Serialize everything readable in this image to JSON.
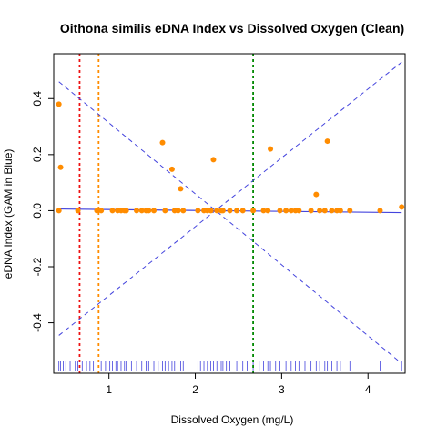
{
  "chart_data": {
    "type": "scatter",
    "title": "Oithona similis eDNA Index vs Dissolved Oxygen (Clean)",
    "xlabel": "Dissolved Oxygen (mg/L)",
    "ylabel": "eDNA Index (GAM in Blue)",
    "xlim": [
      0.36,
      4.43
    ],
    "ylim": [
      -0.58,
      0.56
    ],
    "x_ticks": [
      1,
      2,
      3,
      4
    ],
    "x_tick_labels": [
      "1",
      "2",
      "3",
      "4"
    ],
    "y_ticks": [
      -0.4,
      -0.2,
      0.0,
      0.2,
      0.4
    ],
    "y_tick_labels": [
      "-0.4",
      "-0.2",
      "0.0",
      "0.2",
      "0.4"
    ],
    "grid": false,
    "legend": "none",
    "points": {
      "color": "#ff8c00",
      "x": [
        0.42,
        0.44,
        0.42,
        0.64,
        0.86,
        0.91,
        1.04,
        1.1,
        1.14,
        1.18,
        1.2,
        1.32,
        1.38,
        1.43,
        1.46,
        1.52,
        1.62,
        1.65,
        1.73,
        1.76,
        1.8,
        1.83,
        1.86,
        2.03,
        2.1,
        2.14,
        2.18,
        2.21,
        2.25,
        2.3,
        2.32,
        2.4,
        2.48,
        2.55,
        2.67,
        2.79,
        2.84,
        2.87,
        2.98,
        3.05,
        3.11,
        3.16,
        3.2,
        3.34,
        3.4,
        3.44,
        3.5,
        3.53,
        3.58,
        3.64,
        3.68,
        3.79,
        4.14,
        4.39
      ],
      "y": [
        0.38,
        0.155,
        0.0,
        0.0,
        0.0,
        0.0,
        0.0,
        0.0,
        0.0,
        0.0,
        0.0,
        0.0,
        0.0,
        0.0,
        0.0,
        0.0,
        0.243,
        0.0,
        0.148,
        0.0,
        0.0,
        0.078,
        0.0,
        0.0,
        0.0,
        0.0,
        0.0,
        0.182,
        0.0,
        0.0,
        0.0,
        0.0,
        0.0,
        0.0,
        0.0,
        0.0,
        0.0,
        0.22,
        0.0,
        0.0,
        0.0,
        0.0,
        0.0,
        0.0,
        0.058,
        0.0,
        0.0,
        0.248,
        0.0,
        0.0,
        0.0,
        0.0,
        0.0,
        0.013
      ]
    },
    "gam_fit": {
      "color": "#4444dd",
      "x": [
        0.42,
        4.39
      ],
      "y": [
        0.006,
        -0.007
      ]
    },
    "confidence_bands": {
      "color": "#4444dd",
      "style": "dashed",
      "upper": {
        "x": [
          0.42,
          4.39
        ],
        "y": [
          -0.445,
          0.53
        ]
      },
      "lower": {
        "x": [
          0.42,
          4.39
        ],
        "y": [
          0.46,
          -0.545
        ]
      }
    },
    "vertical_lines": [
      {
        "x": 0.66,
        "color": "#ee1111",
        "style": "dotted"
      },
      {
        "x": 0.88,
        "color": "#ff8c00",
        "style": "dotted"
      },
      {
        "x": 2.67,
        "color": "#008800",
        "style": "dotted"
      }
    ],
    "rug": {
      "color": "#4444dd",
      "x": [
        0.42,
        0.44,
        0.47,
        0.5,
        0.55,
        0.61,
        0.64,
        0.69,
        0.74,
        0.78,
        0.82,
        0.86,
        0.91,
        0.96,
        1.01,
        1.04,
        1.08,
        1.1,
        1.14,
        1.18,
        1.2,
        1.26,
        1.32,
        1.38,
        1.43,
        1.46,
        1.52,
        1.57,
        1.62,
        1.65,
        1.69,
        1.73,
        1.76,
        1.8,
        1.83,
        1.86,
        2.03,
        2.06,
        2.1,
        2.14,
        2.18,
        2.21,
        2.25,
        2.3,
        2.32,
        2.36,
        2.4,
        2.48,
        2.55,
        2.6,
        2.67,
        2.74,
        2.79,
        2.84,
        2.87,
        2.93,
        2.98,
        3.05,
        3.11,
        3.16,
        3.2,
        3.27,
        3.34,
        3.4,
        3.44,
        3.5,
        3.53,
        3.58,
        3.64,
        3.68,
        3.79,
        4.14,
        4.39
      ]
    }
  }
}
